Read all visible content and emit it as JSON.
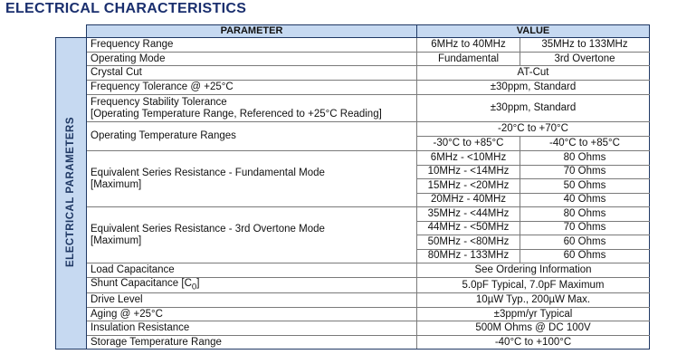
{
  "title": "ELECTRICAL CHARACTERISTICS",
  "table": {
    "headers": [
      "PARAMETER",
      "VALUE"
    ],
    "side_label": "ELECTRICAL PARAMETERS",
    "rows": [
      {
        "parameter": "Frequency Range",
        "values": [
          "6MHz to 40MHz",
          "35MHz to 133MHz"
        ]
      },
      {
        "parameter": "Operating Mode",
        "values": [
          "Fundamental",
          "3rd Overtone"
        ]
      },
      {
        "parameter": "Crystal Cut",
        "value": "AT-Cut"
      },
      {
        "parameter": "Frequency Tolerance @ +25°C",
        "value": "±30ppm, Standard"
      },
      {
        "parameter": [
          "Frequency Stability Tolerance",
          "[Operating Temperature Range, Referenced to +25°C Reading]"
        ],
        "value": "±30ppm, Standard"
      },
      {
        "parameter": "Operating Temperature Ranges",
        "value": "-20°C to +70°C",
        "values": [
          "-30°C to +85°C",
          "-40°C to +85°C"
        ]
      },
      {
        "parameter": [
          "Equivalent Series Resistance - Fundamental Mode",
          "[Maximum]"
        ],
        "ranges": [
          "6MHz - <10MHz",
          "10MHz - <14MHz",
          "15MHz - <20MHz",
          "20MHz - 40MHz"
        ],
        "resistances": [
          "80 Ohms",
          "70 Ohms",
          "50 Ohms",
          "40 Ohms"
        ]
      },
      {
        "parameter": [
          "Equivalent Series Resistance - 3rd Overtone Mode",
          "[Maximum]"
        ],
        "ranges": [
          "35MHz - <44MHz",
          "44MHz - <50MHz",
          "50MHz - <80MHz",
          "80MHz - 133MHz"
        ],
        "resistances": [
          "80 Ohms",
          "70 Ohms",
          "60 Ohms",
          "60 Ohms"
        ]
      },
      {
        "parameter": "Load Capacitance",
        "value": "See Ordering Information"
      },
      {
        "parameter": "Shunt Capacitance  [C",
        "parameter_subscript": "0",
        "parameter_end": "]",
        "value": "5.0pF Typical, 7.0pF Maximum"
      },
      {
        "parameter": "Drive Level",
        "value": "10µW Typ., 200µW Max."
      },
      {
        "parameter": "Aging @ +25°C",
        "value": "±3ppm/yr Typical"
      },
      {
        "parameter": "Insulation Resistance",
        "value": "500M Ohms @ DC 100V"
      },
      {
        "parameter": "Storage Temperature Range",
        "value": "-40°C to +100°C"
      }
    ]
  }
}
